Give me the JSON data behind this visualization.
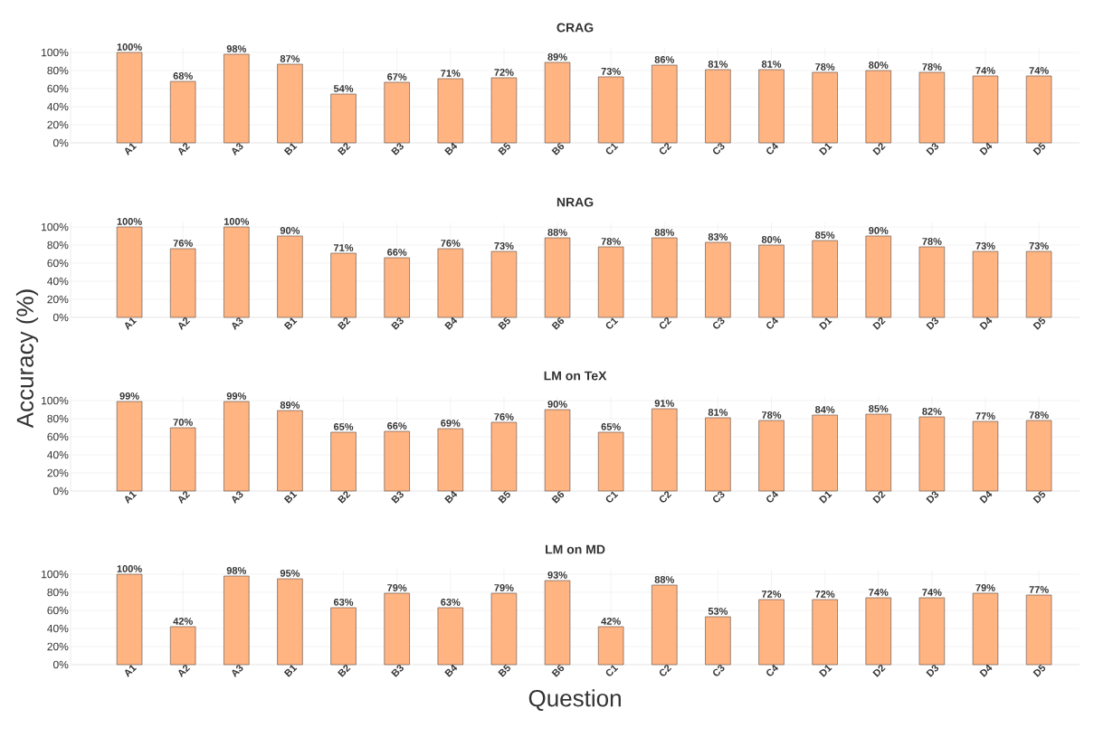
{
  "chart_data": [
    {
      "type": "bar",
      "title": "CRAG",
      "color": "#ffb482",
      "grid": true,
      "categories": [
        "A1",
        "A2",
        "A3",
        "B1",
        "B2",
        "B3",
        "B4",
        "B5",
        "B6",
        "C1",
        "C2",
        "C3",
        "C4",
        "D1",
        "D2",
        "D3",
        "D4",
        "D5"
      ],
      "values": [
        100,
        68,
        98,
        87,
        54,
        67,
        71,
        72,
        89,
        73,
        86,
        81,
        81,
        78,
        80,
        78,
        74,
        74
      ],
      "value_labels": [
        "100%",
        "68%",
        "98%",
        "87%",
        "54%",
        "67%",
        "71%",
        "72%",
        "89%",
        "73%",
        "86%",
        "81%",
        "81%",
        "78%",
        "80%",
        "78%",
        "74%",
        "74%"
      ],
      "ylim": [
        0,
        105
      ],
      "yticks": [
        {
          "value": 0,
          "label": "0%"
        },
        {
          "value": 20,
          "label": "20%"
        },
        {
          "value": 40,
          "label": "40%"
        },
        {
          "value": 60,
          "label": "60%"
        },
        {
          "value": 80,
          "label": "80%"
        },
        {
          "value": 100,
          "label": "100%"
        }
      ]
    },
    {
      "type": "bar",
      "title": "NRAG",
      "ylabel": "Accuracy (%)",
      "color": "#ffb482",
      "grid": true,
      "categories": [
        "A1",
        "A2",
        "A3",
        "B1",
        "B2",
        "B3",
        "B4",
        "B5",
        "B6",
        "C1",
        "C2",
        "C3",
        "C4",
        "D1",
        "D2",
        "D3",
        "D4",
        "D5"
      ],
      "values": [
        100,
        76,
        100,
        90,
        71,
        66,
        76,
        73,
        88,
        78,
        88,
        83,
        80,
        85,
        90,
        78,
        73,
        73
      ],
      "value_labels": [
        "100%",
        "76%",
        "100%",
        "90%",
        "71%",
        "66%",
        "76%",
        "73%",
        "88%",
        "78%",
        "88%",
        "83%",
        "80%",
        "85%",
        "90%",
        "78%",
        "73%",
        "73%"
      ],
      "ylim": [
        0,
        105
      ],
      "yticks": [
        {
          "value": 0,
          "label": "0%"
        },
        {
          "value": 20,
          "label": "20%"
        },
        {
          "value": 40,
          "label": "40%"
        },
        {
          "value": 60,
          "label": "60%"
        },
        {
          "value": 80,
          "label": "80%"
        },
        {
          "value": 100,
          "label": "100%"
        }
      ]
    },
    {
      "type": "bar",
      "title": "LM on TeX",
      "color": "#ffb482",
      "grid": true,
      "categories": [
        "A1",
        "A2",
        "A3",
        "B1",
        "B2",
        "B3",
        "B4",
        "B5",
        "B6",
        "C1",
        "C2",
        "C3",
        "C4",
        "D1",
        "D2",
        "D3",
        "D4",
        "D5"
      ],
      "values": [
        99,
        70,
        99,
        89,
        65,
        66,
        69,
        76,
        90,
        65,
        91,
        81,
        78,
        84,
        85,
        82,
        77,
        78
      ],
      "value_labels": [
        "99%",
        "70%",
        "99%",
        "89%",
        "65%",
        "66%",
        "69%",
        "76%",
        "90%",
        "65%",
        "91%",
        "81%",
        "78%",
        "84%",
        "85%",
        "82%",
        "77%",
        "78%"
      ],
      "ylim": [
        0,
        105
      ],
      "yticks": [
        {
          "value": 0,
          "label": "0%"
        },
        {
          "value": 20,
          "label": "20%"
        },
        {
          "value": 40,
          "label": "40%"
        },
        {
          "value": 60,
          "label": "60%"
        },
        {
          "value": 80,
          "label": "80%"
        },
        {
          "value": 100,
          "label": "100%"
        }
      ]
    },
    {
      "type": "bar",
      "title": "LM on MD",
      "xlabel": "Question",
      "color": "#ffb482",
      "grid": true,
      "categories": [
        "A1",
        "A2",
        "A3",
        "B1",
        "B2",
        "B3",
        "B4",
        "B5",
        "B6",
        "C1",
        "C2",
        "C3",
        "C4",
        "D1",
        "D2",
        "D3",
        "D4",
        "D5"
      ],
      "values": [
        100,
        42,
        98,
        95,
        63,
        79,
        63,
        79,
        93,
        42,
        88,
        53,
        72,
        72,
        74,
        74,
        79,
        77
      ],
      "value_labels": [
        "100%",
        "42%",
        "98%",
        "95%",
        "63%",
        "79%",
        "63%",
        "79%",
        "93%",
        "42%",
        "88%",
        "53%",
        "72%",
        "72%",
        "74%",
        "74%",
        "79%",
        "77%"
      ],
      "ylim": [
        0,
        105
      ],
      "yticks": [
        {
          "value": 0,
          "label": "0%"
        },
        {
          "value": 20,
          "label": "20%"
        },
        {
          "value": 40,
          "label": "40%"
        },
        {
          "value": 60,
          "label": "60%"
        },
        {
          "value": 80,
          "label": "80%"
        },
        {
          "value": 100,
          "label": "100%"
        }
      ]
    }
  ]
}
